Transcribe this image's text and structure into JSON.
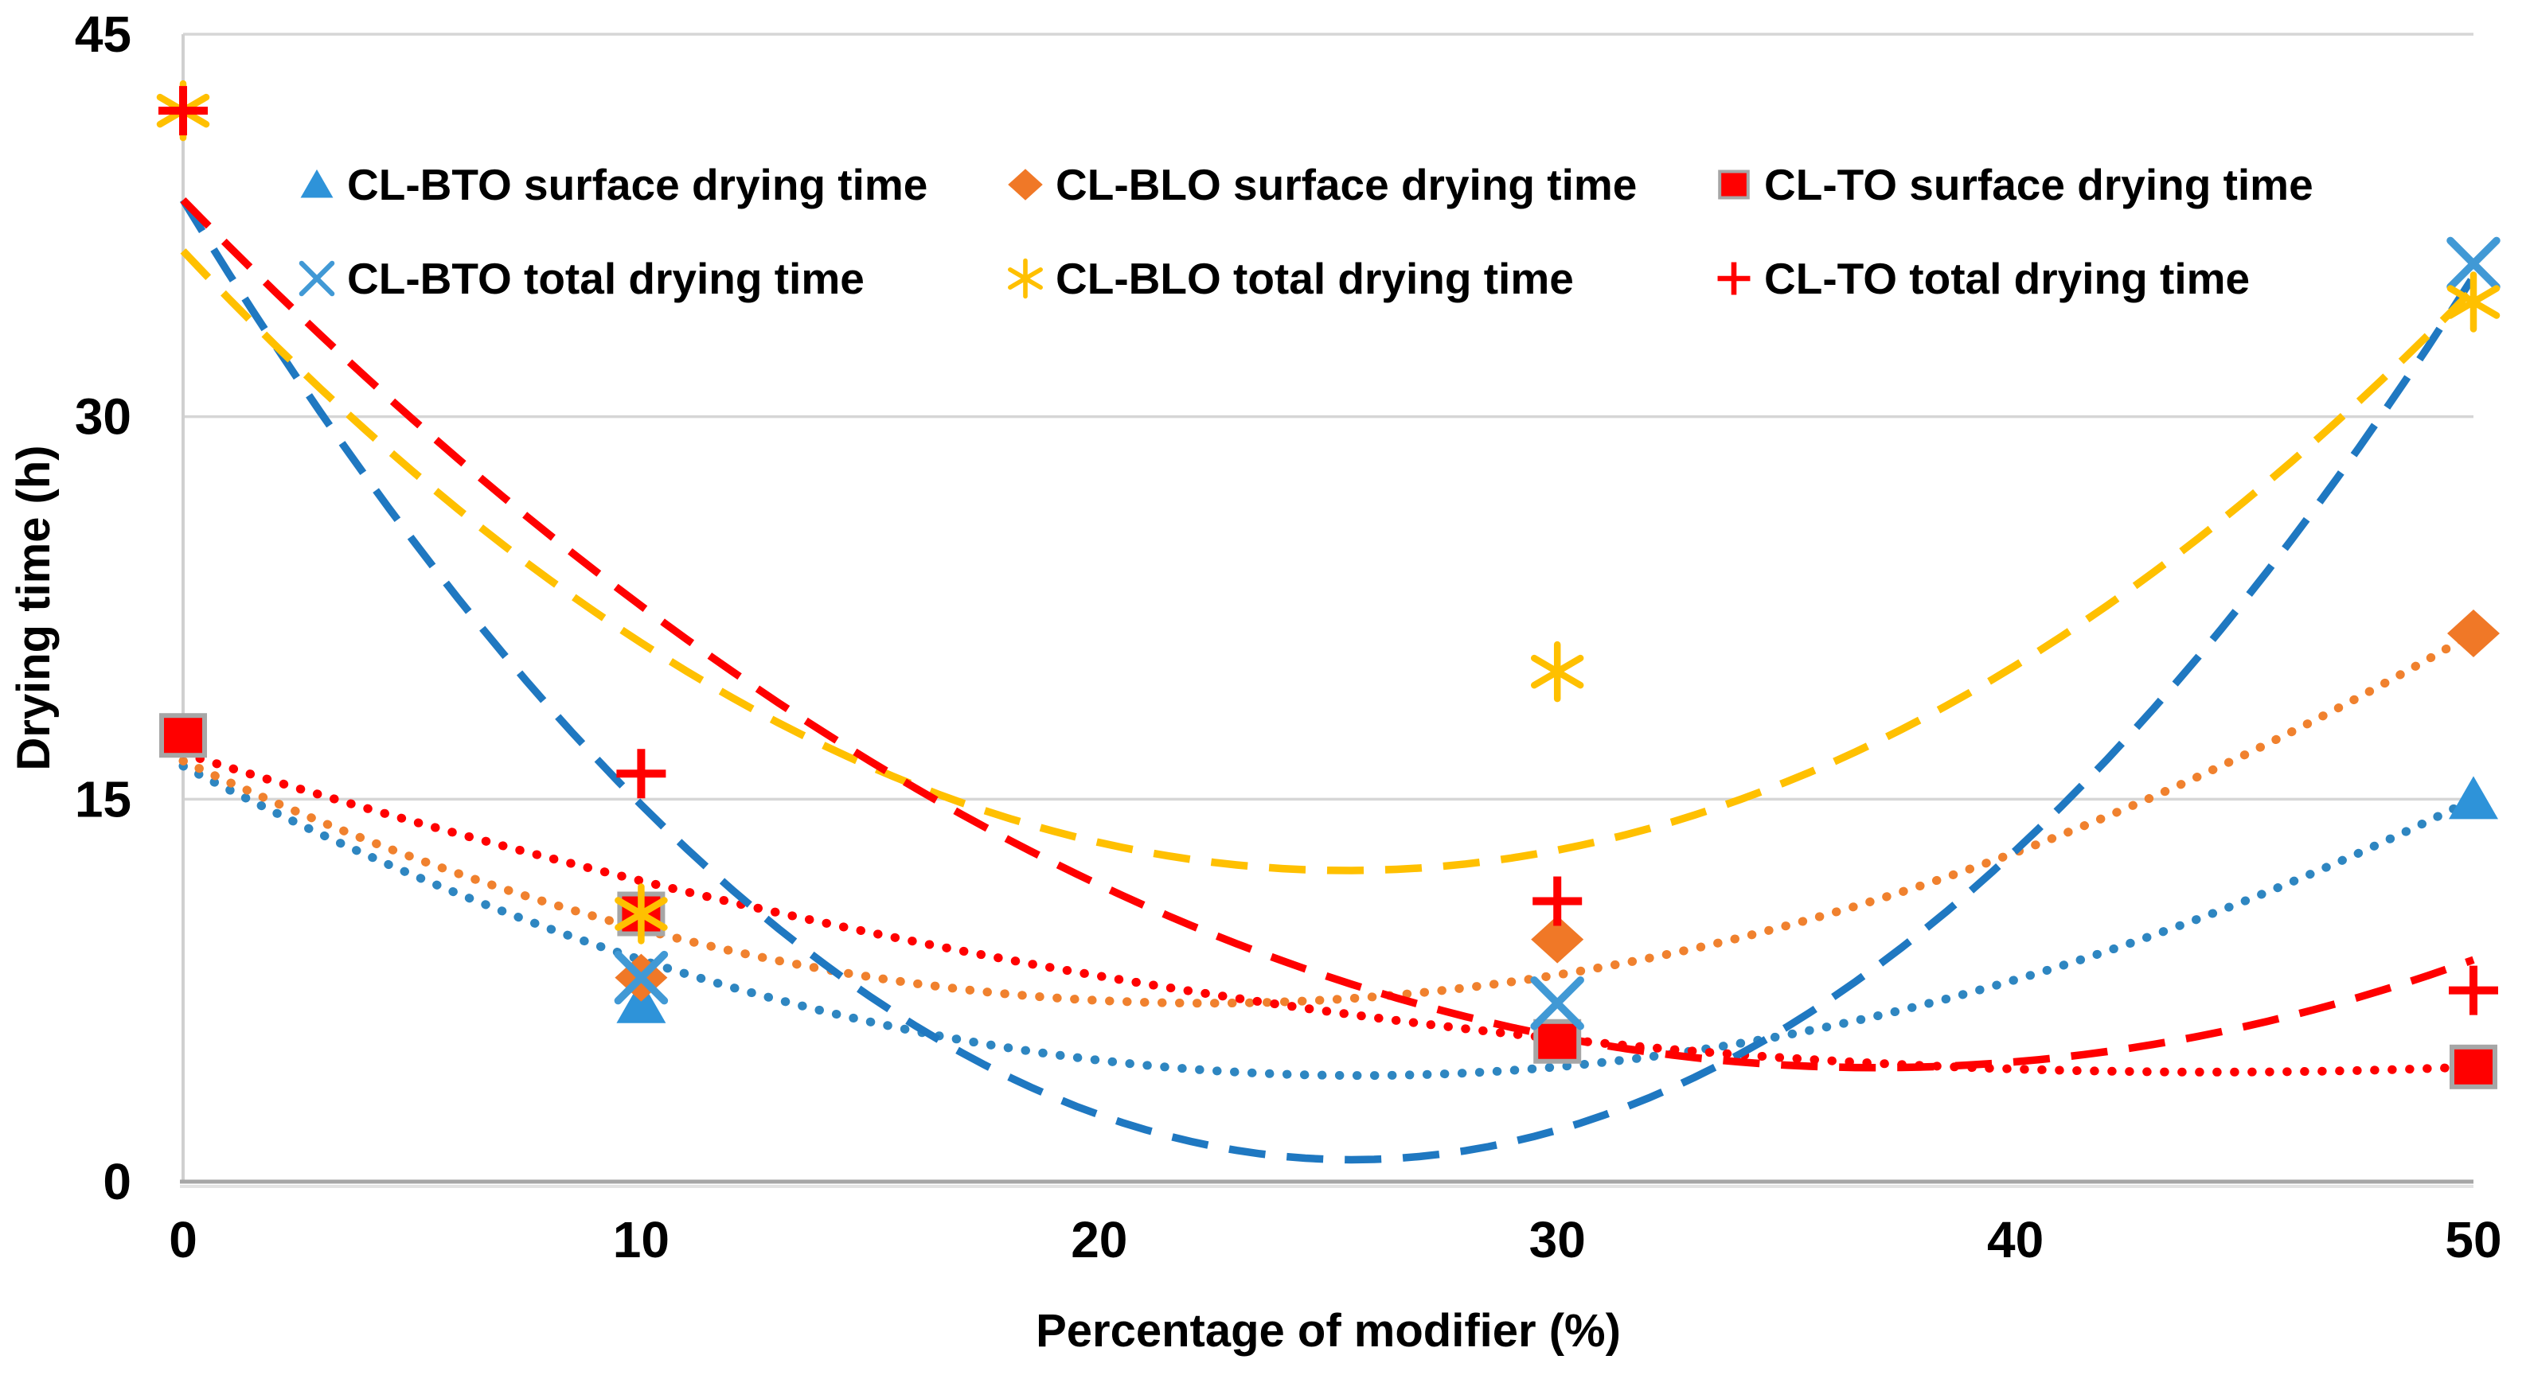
{
  "figure": {
    "background": "#FFFFFF",
    "grid_color": "#D6D6D6",
    "axis_line_color": "#BFBFBF",
    "bottom_axis_color": "#A6A6A6",
    "text_color": "#000000"
  },
  "chart_data": {
    "type": "scatter",
    "title": "",
    "xlabel": "Percentage of modifier (%)",
    "ylabel": "Drying time (h)",
    "xlim": [
      0,
      50
    ],
    "ylim": [
      0,
      45
    ],
    "x_ticks": [
      "0",
      "10",
      "20",
      "30",
      "40",
      "50"
    ],
    "x_tick_values": [
      0,
      10,
      20,
      30,
      40,
      50
    ],
    "y_ticks": [
      "0",
      "15",
      "30",
      "45"
    ],
    "y_tick_values": [
      0,
      15,
      30,
      45
    ],
    "grid": "horizontal",
    "legend_position": "top-inside-two-rows",
    "x": [
      0,
      10,
      30,
      50
    ],
    "series": [
      {
        "name": "CL-BTO surface drying time",
        "label": "CL-BTO surface drying time",
        "marker": "triangle",
        "color": "#2E93D9",
        "values": [
          17.5,
          7,
          5.5,
          15
        ],
        "hidden_points": [
          0,
          30
        ],
        "trend": {
          "style": "dotted",
          "color": "#2E86C1",
          "poly_a": 0.01837,
          "poly_b": -0.9444,
          "poly_c": 16.3
        }
      },
      {
        "name": "CL-BLO surface drying time",
        "label": "CL-BLO surface drying time",
        "marker": "diamond",
        "color": "#F07827",
        "values": [
          17.5,
          8,
          9.5,
          21.5
        ],
        "hidden_points": [
          0
        ],
        "trend": {
          "style": "dotted",
          "color": "#F0812E",
          "poly_a": 0.019,
          "poly_b": -0.8498,
          "poly_c": 16.5
        }
      },
      {
        "name": "CL-TO surface drying time",
        "label": "CL-TO  surface drying time",
        "marker": "square",
        "color": "#FF0000",
        "border": "#A6A6A6",
        "values": [
          17.5,
          10.5,
          5.5,
          4.5
        ],
        "hidden_points": [],
        "trend": {
          "style": "dotted",
          "color": "#FF0000",
          "poly_a": 0.00636,
          "poly_b": -0.564,
          "poly_c": 16.8
        }
      },
      {
        "name": "CL-BTO total drying time",
        "label": "CL-BTO total drying time",
        "marker": "x",
        "color": "#4199D5",
        "values": [
          42,
          8,
          7,
          36
        ],
        "hidden_points": [
          0
        ],
        "trend": {
          "style": "dashed",
          "color": "#1F78C1",
          "poly_a": 0.0578,
          "poly_b": -2.95,
          "poly_c": 38.5
        }
      },
      {
        "name": "CL-BLO total drying time",
        "label": "CL-BLO total drying time",
        "marker": "asterisk",
        "color": "#FFC000",
        "values": [
          42,
          10.5,
          20,
          34.5
        ],
        "hidden_points": [],
        "trend": {
          "style": "dashed",
          "color": "#FFC000",
          "poly_a": 0.03767,
          "poly_b": -1.9134,
          "poly_c": 36.5
        }
      },
      {
        "name": "CL-TO total drying time",
        "label": "CL-TO  total drying time",
        "marker": "plus",
        "color": "#FF0000",
        "values": [
          42,
          16,
          11,
          7.5
        ],
        "hidden_points": [],
        "trend": {
          "style": "dashed",
          "color": "#FF0000",
          "poly_a": 0.0249,
          "poly_b": -1.841,
          "poly_c": 38.5
        }
      }
    ]
  }
}
